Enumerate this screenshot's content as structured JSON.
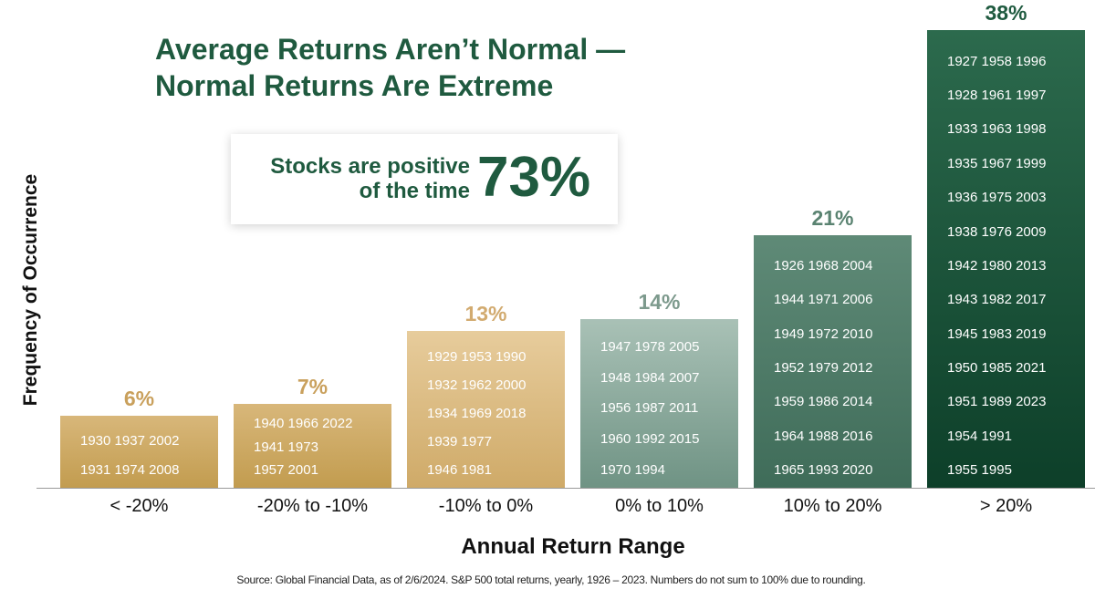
{
  "title_line1": "Average Returns Aren’t Normal —",
  "title_line2": "Normal Returns Are Extreme",
  "callout": {
    "line1": "Stocks are positive",
    "line2": "of the time",
    "percent": "73%"
  },
  "source": "Source: Global Financial Data, as of 2/6/2024. S&P 500 total returns, yearly, 1926 – 2023. Numbers do not sum to 100% due to rounding.",
  "chart_data": {
    "type": "bar",
    "xlabel": "Annual Return Range",
    "ylabel": "Frequency of Occurrence",
    "categories": [
      "< -20%",
      "-20% to -10%",
      "-10% to 0%",
      "0% to 10%",
      "10% to 20%",
      "> 20%"
    ],
    "values": [
      6,
      7,
      13,
      14,
      21,
      38
    ],
    "value_labels": [
      "6%",
      "7%",
      "13%",
      "14%",
      "21%",
      "38%"
    ],
    "ylim": [
      0,
      40
    ],
    "grid": false,
    "colors": [
      {
        "top": "#d8b77a",
        "bottom": "#c29c4f",
        "label": "#c9a05c"
      },
      {
        "top": "#d8b77a",
        "bottom": "#c29c4f",
        "label": "#c9a05c"
      },
      {
        "top": "#e7cc9c",
        "bottom": "#cfaa68",
        "label": "#d2ab70"
      },
      {
        "top": "#a9c1b6",
        "bottom": "#6f9384",
        "label": "#7d9a8d"
      },
      {
        "top": "#5f8a77",
        "bottom": "#3f6c59",
        "label": "#5a8371"
      },
      {
        "top": "#2c6a4d",
        "bottom": "#0d3f29",
        "label": "#1f5a3f"
      }
    ],
    "years": [
      [
        "1930 1937 2002",
        "1931 1974 2008"
      ],
      [
        "1940 1966 2022",
        "1941 1973",
        "1957 2001"
      ],
      [
        "1929 1953 1990",
        "1932 1962 2000",
        "1934 1969 2018",
        "1939 1977",
        "1946 1981"
      ],
      [
        "1947 1978 2005",
        "1948 1984 2007",
        "1956 1987 2011",
        "1960 1992 2015",
        "1970 1994"
      ],
      [
        "1926 1968 2004",
        "1944 1971 2006",
        "1949 1972 2010",
        "1952 1979 2012",
        "1959 1986 2014",
        "1964 1988 2016",
        "1965 1993 2020"
      ],
      [
        "1927 1958 1996",
        "1928 1961 1997",
        "1933 1963 1998",
        "1935 1967 1999",
        "1936 1975 2003",
        "1938 1976 2009",
        "1942 1980 2013",
        "1943 1982 2017",
        "1945 1983 2019",
        "1950 1985 2021",
        "1951 1989 2023",
        "1954 1991",
        "1955 1995"
      ]
    ]
  }
}
